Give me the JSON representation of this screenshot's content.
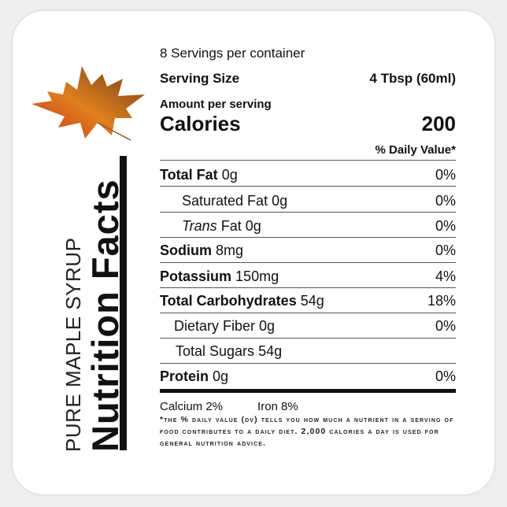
{
  "label": {
    "brand": "PURE MAPLE SYRUP",
    "title": "Nutrition Facts",
    "servings": "8 Servings per container",
    "serving_size_label": "Serving Size",
    "serving_size_value": "4 Tbsp (60ml)",
    "amount_per_serving": "Amount per serving",
    "calories_label": "Calories",
    "calories_value": "200",
    "daily_value_header": "% Daily Value*",
    "nutrients": [
      {
        "name": "Total Fat",
        "amount": "0g",
        "dv": "0%"
      },
      {
        "name": "Saturated Fat",
        "amount": "0g",
        "dv": "0%"
      },
      {
        "name_italic": "Trans",
        "name": "Fat",
        "amount": "0g",
        "dv": "0%"
      },
      {
        "name": "Sodium",
        "amount": "8mg",
        "dv": "0%"
      },
      {
        "name": "Potassium",
        "amount": "150mg",
        "dv": "4%"
      },
      {
        "name": "Total Carbohydrates",
        "amount": "54g",
        "dv": "18%"
      },
      {
        "name": "Dietary Fiber",
        "amount": "0g",
        "dv": "0%"
      },
      {
        "name": "Total Sugars",
        "amount": "54g",
        "dv": ""
      },
      {
        "name": "Protein",
        "amount": "0g",
        "dv": "0%"
      }
    ],
    "calcium": "Calcium 2%",
    "iron": "Iron 8%",
    "footnote": "*The % Daily Value (DV) tells you how much a nutrient in a serving of food contributes to a daily diet. 2,000 calories a day is used for general nutrition advice."
  },
  "colors": {
    "leaf_red": "#c8361a",
    "leaf_orange": "#e0801e",
    "leaf_green": "#7a8a2a"
  }
}
